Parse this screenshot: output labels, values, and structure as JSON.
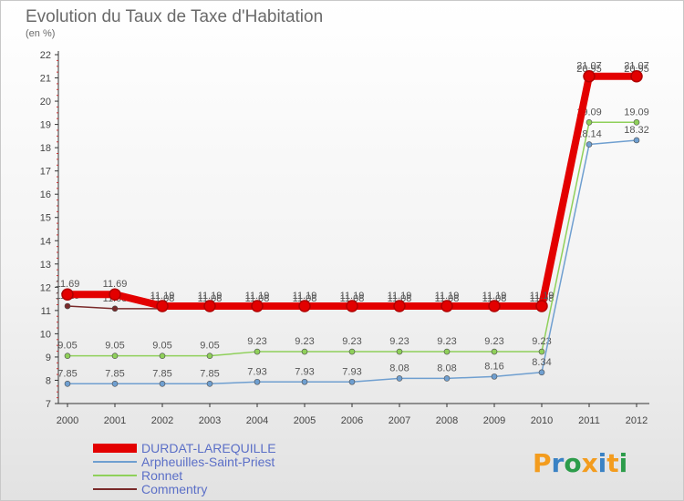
{
  "colors": {
    "axis": "#333333",
    "grid": "#dddddd",
    "legend_text": "#5b6fc7"
  },
  "logo": {
    "text": "Proxiti",
    "letters": [
      {
        "ch": "P",
        "color": "#f39c1e"
      },
      {
        "ch": "r",
        "color": "#3a82c4"
      },
      {
        "ch": "o",
        "color": "#2c9c4a"
      },
      {
        "ch": "x",
        "color": "#f39c1e"
      },
      {
        "ch": "i",
        "color": "#3a82c4"
      },
      {
        "ch": "t",
        "color": "#f39c1e"
      },
      {
        "ch": "i",
        "color": "#2c9c4a"
      }
    ]
  },
  "chart_data": {
    "type": "line",
    "title": "Evolution du Taux de Taxe d'Habitation",
    "subtitle": "(en %)",
    "xlabel": "",
    "ylabel": "",
    "ylim": [
      7,
      22
    ],
    "yticks": [
      7,
      8,
      9,
      10,
      11,
      12,
      13,
      14,
      15,
      16,
      17,
      18,
      19,
      20,
      21,
      22
    ],
    "x": [
      "2000",
      "2001",
      "2002",
      "2003",
      "2004",
      "2005",
      "2006",
      "2007",
      "2008",
      "2009",
      "2010",
      "2011",
      "2012"
    ],
    "grid": false,
    "legend_position": "bottom-left",
    "series": [
      {
        "name": "Commentry",
        "color": "#7a2a2a",
        "values": [
          11.19,
          11.08,
          11.08,
          11.08,
          11.08,
          11.08,
          11.08,
          11.08,
          11.08,
          11.08,
          11.08,
          20.95,
          20.95
        ],
        "labels": [
          "11.19",
          "11.08",
          "11.08",
          "11.08",
          "11.08",
          "11.08",
          "11.08",
          "11.08",
          "11.08",
          "11.08",
          "11.08",
          "20.95",
          "20.95"
        ]
      },
      {
        "name": "Ronnet",
        "color": "#8fd05a",
        "values": [
          9.05,
          9.05,
          9.05,
          9.05,
          9.23,
          9.23,
          9.23,
          9.23,
          9.23,
          9.23,
          9.23,
          19.09,
          19.09
        ],
        "labels": [
          "9.05",
          "9.05",
          "9.05",
          "9.05",
          "9.23",
          "9.23",
          "9.23",
          "9.23",
          "9.23",
          "9.23",
          "9.23",
          "19.09",
          "19.09"
        ]
      },
      {
        "name": "Arpheuilles-Saint-Priest",
        "color": "#6f9fd0",
        "values": [
          7.85,
          7.85,
          7.85,
          7.85,
          7.93,
          7.93,
          7.93,
          8.08,
          8.08,
          8.16,
          8.34,
          18.14,
          18.32
        ],
        "labels": [
          "7.85",
          "7.85",
          "7.85",
          "7.85",
          "7.93",
          "7.93",
          "7.93",
          "8.08",
          "8.08",
          "8.16",
          "8.34",
          "18.14",
          "18.32"
        ]
      },
      {
        "name": "DURDAT-LAREQUILLE",
        "color": "#e30000",
        "values": [
          11.69,
          11.69,
          11.19,
          11.19,
          11.19,
          11.19,
          11.19,
          11.19,
          11.19,
          11.19,
          11.19,
          21.07,
          21.07
        ],
        "labels": [
          "11.69",
          "11.69",
          "11.19",
          "11.19",
          "11.19",
          "11.19",
          "11.19",
          "11.19",
          "11.19",
          "11.19",
          "11.19",
          "21.07",
          "21.07"
        ]
      }
    ],
    "legend": [
      "DURDAT-LAREQUILLE",
      "Arpheuilles-Saint-Priest",
      "Ronnet",
      "Commentry"
    ]
  }
}
